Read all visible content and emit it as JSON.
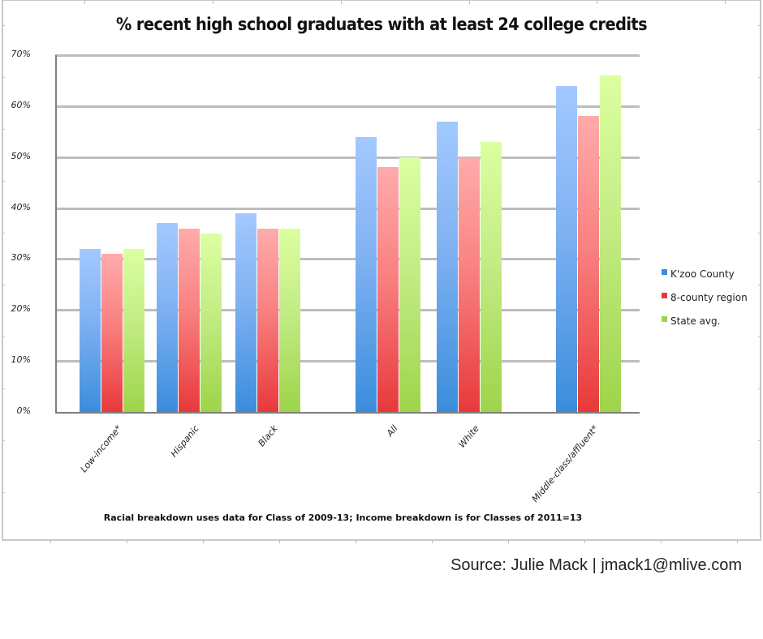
{
  "title": "%  recent high school graduates with at least 24 college credits",
  "y_axis": {
    "ticks": [
      "0%",
      "10%",
      "20%",
      "30%",
      "40%",
      "50%",
      "60%",
      "70%"
    ]
  },
  "legend": {
    "items": [
      {
        "label": "K'zoo County",
        "color": "#3a8ddc"
      },
      {
        "label": "8-county region",
        "color": "#e8393b"
      },
      {
        "label": "State avg.",
        "color": "#9ed44a"
      }
    ]
  },
  "categories": [
    "Low-income*",
    "Hispanic",
    "Black",
    "All",
    "White",
    "Middle-class/affluent*"
  ],
  "footnote": "Racial breakdown uses data for Class of 2009-13; Income breakdown is for Classes of 2011=13",
  "source": "Source: Julie Mack | jmack1@mlive.com",
  "chart_data": {
    "type": "bar",
    "title": "%  recent high school graduates with at least 24 college credits",
    "xlabel": "",
    "ylabel": "",
    "ylim": [
      0,
      70
    ],
    "yticks": [
      "0%",
      "10%",
      "20%",
      "30%",
      "40%",
      "50%",
      "60%",
      "70%"
    ],
    "grid": true,
    "legend_position": "right",
    "categories": [
      "Low-income*",
      "Hispanic",
      "Black",
      "All",
      "White",
      "Middle-class/affluent*"
    ],
    "series": [
      {
        "name": "K'zoo County",
        "color": "#3a8ddc",
        "values": [
          32,
          37,
          39,
          54,
          57,
          64
        ]
      },
      {
        "name": "8-county region",
        "color": "#e8393b",
        "values": [
          31,
          36,
          36,
          48,
          50,
          58
        ]
      },
      {
        "name": "State avg.",
        "color": "#9ed44a",
        "values": [
          32,
          35,
          36,
          50,
          53,
          66
        ]
      }
    ],
    "annotations": [
      "Racial breakdown uses data for Class of 2009-13; Income breakdown is for Classes of 2011=13",
      "Source: Julie Mack | jmack1@mlive.com"
    ]
  }
}
